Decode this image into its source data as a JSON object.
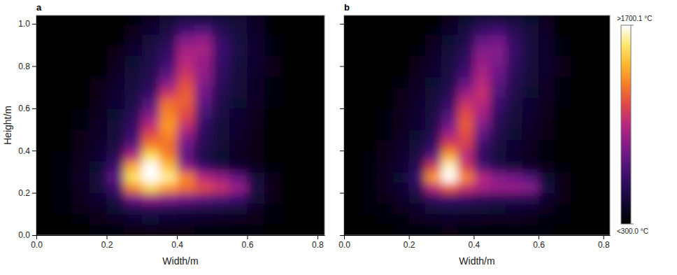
{
  "chart_data": [
    {
      "type": "heatmap",
      "title": "a",
      "x_label": "Width/m",
      "y_label": "Height/m",
      "xlim": [
        0,
        0.82
      ],
      "ylim": [
        0,
        1.04
      ],
      "xticks": [
        {
          "value": 0,
          "label": "0.0"
        },
        0.2,
        0.4,
        0.6,
        0.8
      ],
      "yticks": [
        {
          "value": 0,
          "label": "0.0"
        },
        0.2,
        0.4,
        0.6,
        0.8,
        {
          "value": 1,
          "label": "1.0"
        }
      ],
      "x_bins": [
        0,
        0.05,
        0.1,
        0.15,
        0.2,
        0.25,
        0.3,
        0.35,
        0.4,
        0.45,
        0.5,
        0.55,
        0.6,
        0.65,
        0.7,
        0.75,
        0.8,
        0.85
      ],
      "y_bins": [
        0,
        0.05,
        0.1,
        0.15,
        0.2,
        0.25,
        0.3,
        0.35,
        0.4,
        0.45,
        0.5,
        0.55,
        0.6,
        0.65,
        0.7,
        0.75,
        0.8,
        0.85,
        0.9,
        0.95,
        1.0,
        1.05
      ],
      "values": [
        [
          300,
          300,
          300,
          320,
          350,
          370,
          380,
          370,
          360,
          350,
          340,
          330,
          320,
          300,
          300,
          300,
          300
        ],
        [
          300,
          300,
          330,
          360,
          400,
          430,
          450,
          440,
          420,
          410,
          400,
          390,
          360,
          320,
          300,
          300,
          300
        ],
        [
          300,
          320,
          360,
          400,
          450,
          520,
          560,
          540,
          520,
          500,
          480,
          460,
          400,
          340,
          300,
          300,
          300
        ],
        [
          300,
          330,
          380,
          430,
          520,
          800,
          900,
          850,
          800,
          750,
          700,
          650,
          460,
          360,
          300,
          300,
          300
        ],
        [
          300,
          340,
          390,
          460,
          650,
          1300,
          1500,
          1350,
          1250,
          1150,
          1050,
          900,
          500,
          370,
          300,
          300,
          300
        ],
        [
          300,
          340,
          400,
          470,
          750,
          1550,
          1750,
          1600,
          1300,
          1000,
          900,
          750,
          460,
          360,
          300,
          300,
          300
        ],
        [
          300,
          340,
          390,
          450,
          650,
          1400,
          1700,
          1450,
          900,
          650,
          520,
          440,
          380,
          320,
          300,
          300,
          300
        ],
        [
          300,
          330,
          380,
          440,
          560,
          1000,
          1550,
          1300,
          750,
          520,
          450,
          400,
          360,
          300,
          300,
          300,
          300
        ],
        [
          300,
          300,
          370,
          420,
          500,
          750,
          1300,
          1250,
          800,
          550,
          460,
          410,
          360,
          300,
          300,
          300,
          300
        ],
        [
          300,
          300,
          360,
          410,
          470,
          650,
          1150,
          1300,
          900,
          580,
          470,
          420,
          370,
          300,
          300,
          300,
          300
        ],
        [
          300,
          300,
          350,
          400,
          460,
          600,
          1000,
          1350,
          1050,
          620,
          480,
          430,
          380,
          300,
          300,
          300,
          300
        ],
        [
          300,
          300,
          350,
          390,
          450,
          560,
          850,
          1300,
          1150,
          680,
          500,
          440,
          390,
          300,
          300,
          300,
          300
        ],
        [
          300,
          300,
          300,
          380,
          440,
          520,
          720,
          1250,
          1200,
          750,
          520,
          450,
          400,
          340,
          300,
          300,
          300
        ],
        [
          300,
          300,
          300,
          370,
          430,
          500,
          620,
          1050,
          1200,
          800,
          550,
          460,
          410,
          350,
          300,
          300,
          300
        ],
        [
          300,
          300,
          300,
          360,
          420,
          480,
          560,
          850,
          1150,
          850,
          580,
          470,
          410,
          350,
          300,
          300,
          300
        ],
        [
          300,
          300,
          300,
          300,
          400,
          460,
          540,
          720,
          1050,
          900,
          600,
          480,
          420,
          360,
          300,
          300,
          300
        ],
        [
          300,
          300,
          300,
          300,
          390,
          450,
          520,
          650,
          1000,
          900,
          620,
          490,
          430,
          360,
          300,
          300,
          300
        ],
        [
          300,
          300,
          300,
          300,
          370,
          430,
          500,
          600,
          950,
          950,
          650,
          500,
          430,
          350,
          300,
          300,
          300
        ],
        [
          300,
          300,
          300,
          300,
          300,
          400,
          470,
          550,
          850,
          900,
          620,
          490,
          430,
          350,
          300,
          300,
          300
        ],
        [
          300,
          300,
          300,
          300,
          300,
          370,
          440,
          500,
          650,
          700,
          560,
          480,
          410,
          300,
          300,
          300,
          300
        ],
        [
          300,
          300,
          300,
          300,
          300,
          320,
          400,
          460,
          520,
          520,
          490,
          460,
          410,
          300,
          300,
          300,
          300
        ]
      ]
    },
    {
      "type": "heatmap",
      "title": "b",
      "x_label": "Width/m",
      "xlim": [
        0,
        0.82
      ],
      "ylim": [
        0,
        1.04
      ],
      "xticks": [
        {
          "value": 0,
          "label": "0.0"
        },
        0.2,
        0.4,
        0.6,
        0.8
      ],
      "yticks": [
        0,
        0.2,
        0.4,
        0.6,
        0.8,
        1
      ],
      "tick_labels": "x",
      "x_bins": [
        0,
        0.05,
        0.1,
        0.15,
        0.2,
        0.25,
        0.3,
        0.35,
        0.4,
        0.45,
        0.5,
        0.55,
        0.6,
        0.65,
        0.7,
        0.75,
        0.8,
        0.85
      ],
      "y_bins": [
        0,
        0.05,
        0.1,
        0.15,
        0.2,
        0.25,
        0.3,
        0.35,
        0.4,
        0.45,
        0.5,
        0.55,
        0.6,
        0.65,
        0.7,
        0.75,
        0.8,
        0.85,
        0.9,
        0.95,
        1.0,
        1.05
      ],
      "values": [
        [
          300,
          300,
          300,
          320,
          340,
          350,
          360,
          350,
          340,
          340,
          330,
          330,
          320,
          300,
          300,
          300,
          300
        ],
        [
          300,
          300,
          330,
          350,
          380,
          400,
          410,
          400,
          390,
          380,
          380,
          370,
          350,
          320,
          300,
          300,
          300
        ],
        [
          300,
          320,
          350,
          380,
          420,
          460,
          480,
          470,
          460,
          450,
          440,
          430,
          380,
          340,
          300,
          300,
          300
        ],
        [
          300,
          330,
          370,
          410,
          470,
          600,
          650,
          620,
          580,
          560,
          560,
          550,
          430,
          360,
          300,
          300,
          300
        ],
        [
          300,
          340,
          380,
          440,
          560,
          1000,
          1200,
          1050,
          950,
          900,
          900,
          850,
          480,
          370,
          300,
          300,
          300
        ],
        [
          300,
          340,
          390,
          450,
          620,
          1350,
          1750,
          1300,
          1000,
          850,
          800,
          700,
          450,
          360,
          300,
          300,
          300
        ],
        [
          300,
          340,
          380,
          430,
          560,
          1100,
          1650,
          1100,
          700,
          550,
          470,
          420,
          370,
          320,
          300,
          300,
          300
        ],
        [
          300,
          330,
          370,
          420,
          500,
          750,
          1400,
          1000,
          600,
          480,
          430,
          390,
          350,
          300,
          300,
          300,
          300
        ],
        [
          300,
          300,
          360,
          410,
          470,
          620,
          1150,
          1100,
          650,
          500,
          440,
          400,
          350,
          300,
          300,
          300,
          300
        ],
        [
          300,
          300,
          350,
          400,
          450,
          560,
          950,
          1150,
          750,
          530,
          450,
          410,
          360,
          300,
          300,
          300,
          300
        ],
        [
          300,
          300,
          350,
          390,
          440,
          520,
          800,
          1200,
          850,
          560,
          460,
          420,
          370,
          300,
          300,
          300,
          300
        ],
        [
          300,
          300,
          340,
          380,
          430,
          500,
          700,
          1150,
          950,
          600,
          480,
          430,
          380,
          300,
          300,
          300,
          300
        ],
        [
          300,
          300,
          300,
          370,
          420,
          480,
          620,
          1050,
          1000,
          650,
          500,
          440,
          390,
          340,
          300,
          300,
          300
        ],
        [
          300,
          300,
          300,
          360,
          410,
          460,
          560,
          900,
          1050,
          700,
          530,
          450,
          400,
          350,
          300,
          300,
          300
        ],
        [
          300,
          300,
          300,
          350,
          400,
          450,
          520,
          750,
          1000,
          750,
          550,
          460,
          400,
          350,
          300,
          300,
          300
        ],
        [
          300,
          300,
          300,
          300,
          380,
          430,
          500,
          650,
          950,
          800,
          580,
          470,
          420,
          360,
          300,
          300,
          300
        ],
        [
          300,
          300,
          300,
          300,
          370,
          420,
          490,
          600,
          900,
          820,
          600,
          480,
          420,
          360,
          300,
          300,
          300
        ],
        [
          300,
          300,
          300,
          300,
          350,
          400,
          470,
          560,
          850,
          850,
          620,
          480,
          420,
          350,
          300,
          300,
          300
        ],
        [
          300,
          300,
          300,
          300,
          300,
          380,
          450,
          520,
          750,
          800,
          600,
          480,
          420,
          350,
          300,
          300,
          300
        ],
        [
          300,
          300,
          300,
          300,
          300,
          350,
          420,
          480,
          600,
          650,
          550,
          470,
          400,
          300,
          300,
          300,
          300
        ],
        [
          300,
          300,
          300,
          300,
          300,
          300,
          380,
          450,
          500,
          500,
          480,
          450,
          400,
          300,
          300,
          300,
          300
        ]
      ],
      "colorbar": {
        "range": [
          300,
          1700.1
        ],
        "ticks": [
          {
            "value": 1700.1,
            "label": ">1700.1 °C"
          },
          {
            "value": 300,
            "label": "<300.0 °C"
          }
        ]
      }
    }
  ]
}
